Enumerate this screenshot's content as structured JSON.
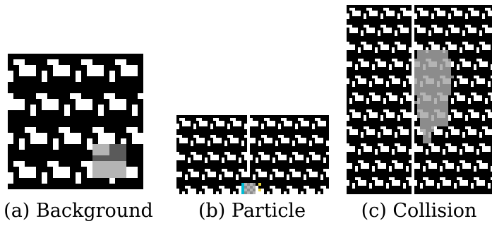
{
  "figure": {
    "panels": [
      {
        "id": "a",
        "caption": "(a) Background"
      },
      {
        "id": "b",
        "caption": "(b) Particle"
      },
      {
        "id": "c",
        "caption": "(c) Collision"
      }
    ]
  },
  "colors": {
    "background": "#ffffff",
    "black": "#000000",
    "light_gray": "#b4b4b4",
    "dark_gray": "#5a5a5a",
    "mid_gray": "#8c8c8c",
    "cyan": "#00bcd4",
    "yellow": "#e8d43a"
  }
}
